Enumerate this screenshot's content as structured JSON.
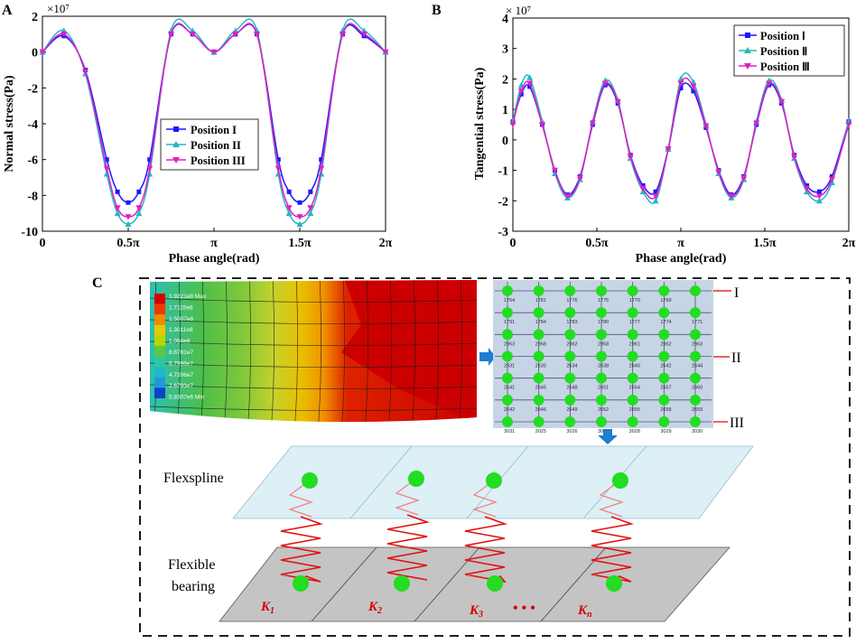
{
  "chart_data": [
    {
      "panel": "A",
      "type": "line",
      "xlabel": "Phase angle(rad)",
      "ylabel": "Normal stress(Pa)",
      "exponent": "×10⁷",
      "xlim": [
        0,
        6.2832
      ],
      "ylim": [
        -10,
        2
      ],
      "xticks": [
        "0",
        "0.5π",
        "π",
        "1.5π",
        "2π"
      ],
      "yticks": [
        "2",
        "0",
        "-2",
        "-4",
        "-6",
        "-8",
        "-10"
      ],
      "legend_position": "center",
      "series": [
        {
          "name": "Position I",
          "color": "#1a1aff",
          "marker": "square",
          "x": [
            0,
            0.3927,
            0.7854,
            1.1781,
            1.3744,
            1.5708,
            1.7671,
            1.9635,
            2.3562,
            2.7489,
            3.1416,
            3.5343,
            3.927,
            4.3197,
            4.516,
            4.7124,
            4.9087,
            5.1051,
            5.4978,
            5.8905,
            6.2832
          ],
          "y": [
            0,
            0.9,
            -1.0,
            -6.0,
            -7.8,
            -8.4,
            -7.8,
            -6.0,
            1.0,
            1.0,
            0,
            1.0,
            1.0,
            -6.0,
            -7.8,
            -8.4,
            -7.8,
            -6.0,
            1.0,
            0.9,
            0
          ]
        },
        {
          "name": "Position II",
          "color": "#21b8c4",
          "marker": "triangle",
          "x": [
            0,
            0.3927,
            0.7854,
            1.1781,
            1.3744,
            1.5708,
            1.7671,
            1.9635,
            2.3562,
            2.7489,
            3.1416,
            3.5343,
            3.927,
            4.3197,
            4.516,
            4.7124,
            4.9087,
            5.1051,
            5.4978,
            5.8905,
            6.2832
          ],
          "y": [
            0,
            1.2,
            -1.2,
            -6.8,
            -9.0,
            -9.6,
            -9.0,
            -6.8,
            1.2,
            1.2,
            0,
            1.2,
            1.2,
            -6.8,
            -9.0,
            -9.6,
            -9.0,
            -6.8,
            1.2,
            1.2,
            0
          ]
        },
        {
          "name": "Position III",
          "color": "#e020c0",
          "marker": "triangle-down",
          "x": [
            0,
            0.3927,
            0.7854,
            1.1781,
            1.3744,
            1.5708,
            1.7671,
            1.9635,
            2.3562,
            2.7489,
            3.1416,
            3.5343,
            3.927,
            4.3197,
            4.516,
            4.7124,
            4.9087,
            5.1051,
            5.4978,
            5.8905,
            6.2832
          ],
          "y": [
            0,
            1.0,
            -1.1,
            -6.5,
            -8.7,
            -9.2,
            -8.7,
            -6.5,
            1.0,
            1.0,
            0,
            1.0,
            1.0,
            -6.5,
            -8.7,
            -9.2,
            -8.7,
            -6.5,
            1.0,
            1.0,
            0
          ]
        }
      ]
    },
    {
      "panel": "B",
      "type": "line",
      "xlabel": "Phase angle(rad)",
      "ylabel": "Tangential stress(Pa)",
      "exponent": "× 10⁷",
      "xlim": [
        0,
        6.2832
      ],
      "ylim": [
        -3,
        4
      ],
      "xticks": [
        "0",
        "0.5π",
        "π",
        "1.5π",
        "2π"
      ],
      "yticks": [
        "4",
        "3",
        "2",
        "1",
        "0",
        "-1",
        "-2",
        "-3"
      ],
      "legend_position": "top-right",
      "series": [
        {
          "name": "Position Ⅰ",
          "color": "#1a1aff",
          "marker": "square",
          "x": [
            0,
            0.1571,
            0.3142,
            0.5498,
            0.7854,
            1.021,
            1.2566,
            1.4923,
            1.7279,
            1.9635,
            2.1991,
            2.4347,
            2.6704,
            2.906,
            3.1416,
            3.3772,
            3.6128,
            3.8485,
            4.0841,
            4.3197,
            4.5553,
            4.7909,
            5.0266,
            5.2622,
            5.4978,
            5.7334,
            5.969,
            6.2832
          ],
          "y": [
            0.6,
            1.5,
            1.75,
            0.5,
            -1.0,
            -1.8,
            -1.2,
            0.5,
            1.8,
            1.2,
            -0.5,
            -1.5,
            -1.7,
            -0.3,
            1.7,
            1.6,
            0.4,
            -1.0,
            -1.8,
            -1.2,
            0.5,
            1.8,
            1.2,
            -0.5,
            -1.5,
            -1.7,
            -1.2,
            0.6
          ]
        },
        {
          "name": "Position Ⅱ",
          "color": "#21b8c4",
          "marker": "triangle",
          "x": [
            0,
            0.1571,
            0.3142,
            0.5498,
            0.7854,
            1.021,
            1.2566,
            1.4923,
            1.7279,
            1.9635,
            2.1991,
            2.4347,
            2.6704,
            2.906,
            3.1416,
            3.3772,
            3.6128,
            3.8485,
            4.0841,
            4.3197,
            4.5553,
            4.7909,
            5.0266,
            5.2622,
            5.4978,
            5.7334,
            5.969,
            6.2832
          ],
          "y": [
            0.6,
            1.8,
            2.05,
            0.6,
            -1.1,
            -1.9,
            -1.3,
            0.6,
            1.95,
            1.3,
            -0.6,
            -1.7,
            -2.0,
            -0.3,
            2.0,
            1.9,
            0.5,
            -1.1,
            -1.9,
            -1.3,
            0.6,
            1.95,
            1.3,
            -0.6,
            -1.7,
            -2.0,
            -1.4,
            0.6
          ]
        },
        {
          "name": "Position Ⅲ",
          "color": "#e020c0",
          "marker": "triangle-down",
          "x": [
            0,
            0.1571,
            0.3142,
            0.5498,
            0.7854,
            1.021,
            1.2566,
            1.4923,
            1.7279,
            1.9635,
            2.1991,
            2.4347,
            2.6704,
            2.906,
            3.1416,
            3.3772,
            3.6128,
            3.8485,
            4.0841,
            4.3197,
            4.5553,
            4.7909,
            5.0266,
            5.2622,
            5.4978,
            5.7334,
            5.969,
            6.2832
          ],
          "y": [
            0.5,
            1.6,
            1.85,
            0.5,
            -1.0,
            -1.85,
            -1.25,
            0.55,
            1.85,
            1.25,
            -0.55,
            -1.6,
            -1.85,
            -0.3,
            1.85,
            1.75,
            0.45,
            -1.05,
            -1.85,
            -1.25,
            0.55,
            1.85,
            1.25,
            -0.55,
            -1.6,
            -1.85,
            -1.3,
            0.5
          ]
        }
      ]
    }
  ],
  "panel_labels": {
    "a": "A",
    "b": "B",
    "c": "C"
  },
  "panel_c": {
    "contour_legend": [
      "1.9221e8 Max",
      "1.7115e8",
      "1.5007e8",
      "1.3011e8",
      "1.094e8",
      "8.8781e7",
      "6.7996e7",
      "4.7206e7",
      "2.6793e7",
      "5.8307e6 Min"
    ],
    "contour_colors": [
      "#d40000",
      "#ef3a00",
      "#f08a00",
      "#e8c800",
      "#b4d800",
      "#5dc83c",
      "#2fc6a0",
      "#20b8c8",
      "#2098e0",
      "#1040c8"
    ],
    "mesh_numbers": [
      [
        "1764",
        "1781",
        "1776",
        "1775",
        "1770",
        "1769"
      ],
      [
        "1791",
        "1784",
        "1783",
        "1780",
        "1777",
        "1774",
        "1771"
      ],
      [
        "2953",
        "2958",
        "2962",
        "2958",
        "2961",
        "2962",
        "2963"
      ],
      [
        "2931",
        "2635",
        "2634",
        "2638",
        "2640",
        "2642",
        "2644"
      ],
      [
        "2641",
        "2645",
        "2648",
        "2651",
        "2654",
        "2657",
        "2660"
      ],
      [
        "2642",
        "2646",
        "2649",
        "2652",
        "2655",
        "2658",
        "2659"
      ],
      [
        "3031",
        "3025",
        "3026",
        "3027",
        "3028",
        "3029",
        "3030"
      ]
    ],
    "row_labels": [
      "I",
      "II",
      "III"
    ],
    "flexspline_label": "Flexspline",
    "bearing_label_line1": "Flexible",
    "bearing_label_line2": "bearing",
    "stiffness_labels": [
      {
        "k": "K",
        "sub": "1"
      },
      {
        "k": "K",
        "sub": "2"
      },
      {
        "k": "K",
        "sub": "3"
      },
      {
        "k": "K",
        "sub": "n"
      }
    ],
    "ellipsis": "• • •"
  }
}
